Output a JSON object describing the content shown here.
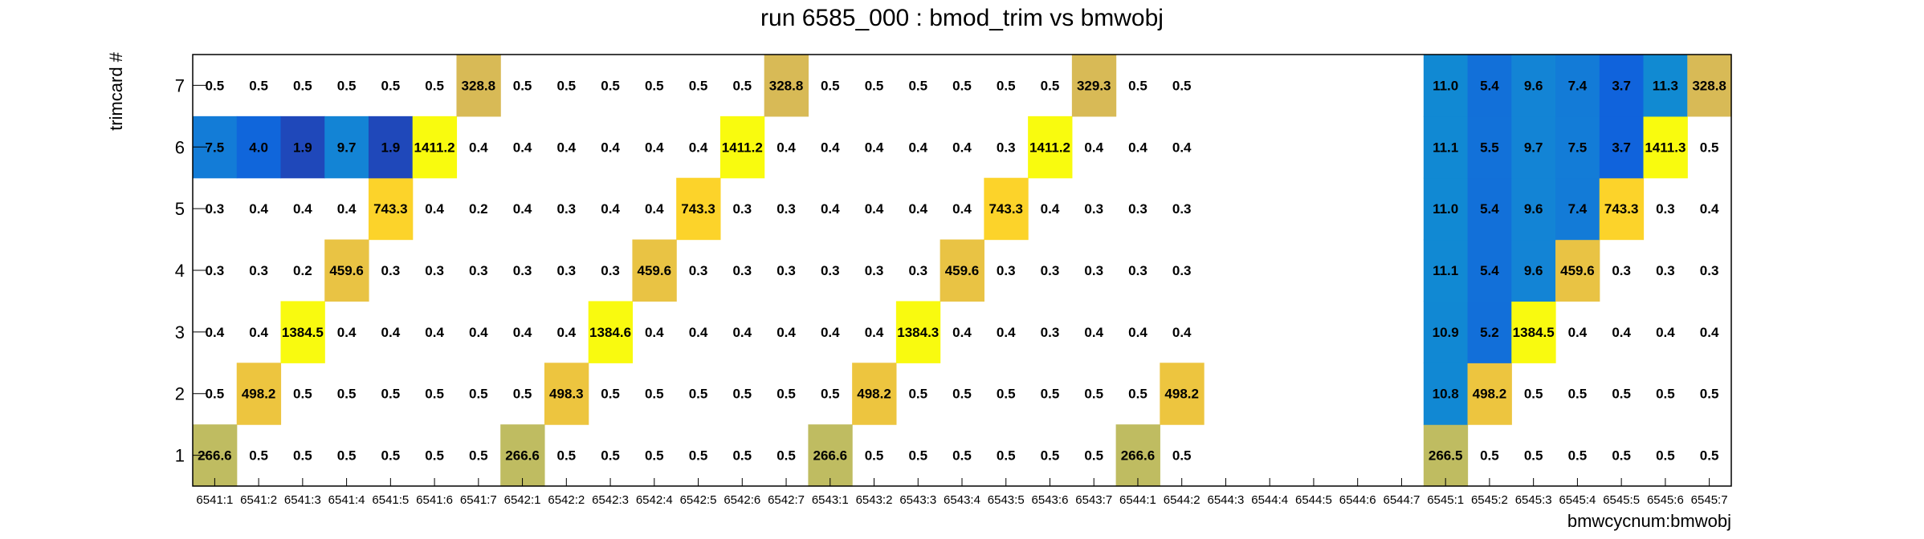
{
  "chart_data": {
    "type": "heatmap",
    "title": "run 6585_000 : bmod_trim vs bmwobj",
    "xlabel": "bmwcycnum:bmwobj",
    "ylabel": "trimcard #",
    "x": [
      "6541:1",
      "6541:2",
      "6541:3",
      "6541:4",
      "6541:5",
      "6541:6",
      "6541:7",
      "6542:1",
      "6542:2",
      "6542:3",
      "6542:4",
      "6542:5",
      "6542:6",
      "6542:7",
      "6543:1",
      "6543:2",
      "6543:3",
      "6543:4",
      "6543:5",
      "6543:6",
      "6543:7",
      "6544:1",
      "6544:2",
      "6544:3",
      "6544:4",
      "6544:5",
      "6544:6",
      "6544:7",
      "6545:1",
      "6545:2",
      "6545:3",
      "6545:4",
      "6545:5",
      "6545:6",
      "6545:7"
    ],
    "y": [
      "1",
      "2",
      "3",
      "4",
      "5",
      "6",
      "7"
    ],
    "z": [
      [
        "266.6",
        "0.5",
        "0.5",
        "0.5",
        "0.5",
        "0.5",
        "0.5",
        "266.6",
        "0.5",
        "0.5",
        "0.5",
        "0.5",
        "0.5",
        "0.5",
        "266.6",
        "0.5",
        "0.5",
        "0.5",
        "0.5",
        "0.5",
        "0.5",
        "266.6",
        "0.5",
        null,
        null,
        null,
        null,
        null,
        "266.5",
        "0.5",
        "0.5",
        "0.5",
        "0.5",
        "0.5",
        "0.5"
      ],
      [
        "0.5",
        "498.2",
        "0.5",
        "0.5",
        "0.5",
        "0.5",
        "0.5",
        "0.5",
        "498.3",
        "0.5",
        "0.5",
        "0.5",
        "0.5",
        "0.5",
        "0.5",
        "498.2",
        "0.5",
        "0.5",
        "0.5",
        "0.5",
        "0.5",
        "0.5",
        "498.2",
        null,
        null,
        null,
        null,
        null,
        "10.8",
        "498.2",
        "0.5",
        "0.5",
        "0.5",
        "0.5",
        "0.5"
      ],
      [
        "0.4",
        "0.4",
        "1384.5",
        "0.4",
        "0.4",
        "0.4",
        "0.4",
        "0.4",
        "0.4",
        "1384.6",
        "0.4",
        "0.4",
        "0.4",
        "0.4",
        "0.4",
        "0.4",
        "1384.3",
        "0.4",
        "0.4",
        "0.3",
        "0.4",
        "0.4",
        "0.4",
        null,
        null,
        null,
        null,
        null,
        "10.9",
        "5.2",
        "1384.5",
        "0.4",
        "0.4",
        "0.4",
        "0.4"
      ],
      [
        "0.3",
        "0.3",
        "0.2",
        "459.6",
        "0.3",
        "0.3",
        "0.3",
        "0.3",
        "0.3",
        "0.3",
        "459.6",
        "0.3",
        "0.3",
        "0.3",
        "0.3",
        "0.3",
        "0.3",
        "459.6",
        "0.3",
        "0.3",
        "0.3",
        "0.3",
        "0.3",
        null,
        null,
        null,
        null,
        null,
        "11.1",
        "5.4",
        "9.6",
        "459.6",
        "0.3",
        "0.3",
        "0.3"
      ],
      [
        "0.3",
        "0.4",
        "0.4",
        "0.4",
        "743.3",
        "0.4",
        "0.2",
        "0.4",
        "0.3",
        "0.4",
        "0.4",
        "743.3",
        "0.3",
        "0.3",
        "0.4",
        "0.4",
        "0.4",
        "0.4",
        "743.3",
        "0.4",
        "0.3",
        "0.3",
        "0.3",
        null,
        null,
        null,
        null,
        null,
        "11.0",
        "5.4",
        "9.6",
        "7.4",
        "743.3",
        "0.3",
        "0.4"
      ],
      [
        "7.5",
        "4.0",
        "1.9",
        "9.7",
        "1.9",
        "1411.2",
        "0.4",
        "0.4",
        "0.4",
        "0.4",
        "0.4",
        "0.4",
        "1411.2",
        "0.4",
        "0.4",
        "0.4",
        "0.4",
        "0.4",
        "0.3",
        "1411.2",
        "0.4",
        "0.4",
        "0.4",
        null,
        null,
        null,
        null,
        null,
        "11.1",
        "5.5",
        "9.7",
        "7.5",
        "3.7",
        "1411.3",
        "0.5"
      ],
      [
        "0.5",
        "0.5",
        "0.5",
        "0.5",
        "0.5",
        "0.5",
        "328.8",
        "0.5",
        "0.5",
        "0.5",
        "0.5",
        "0.5",
        "0.5",
        "328.8",
        "0.5",
        "0.5",
        "0.5",
        "0.5",
        "0.5",
        "0.5",
        "329.3",
        "0.5",
        "0.5",
        null,
        null,
        null,
        null,
        null,
        "11.0",
        "5.4",
        "9.6",
        "7.4",
        "3.7",
        "11.3",
        "328.8"
      ]
    ],
    "grid": false,
    "legend": "none"
  }
}
